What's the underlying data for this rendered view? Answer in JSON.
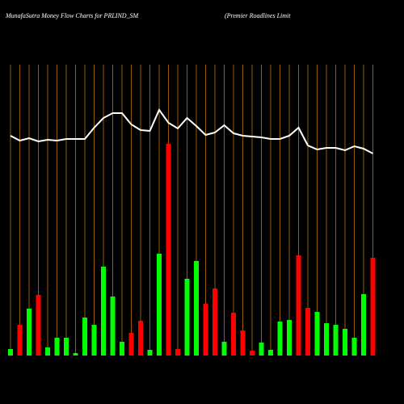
{
  "chart_data": {
    "type": "bar",
    "title": "MunafaSutra  Money Flow  Charts for PRLIND_SM",
    "subtitle": "(Premier Roadlines Limit",
    "categories": [
      null,
      null,
      null,
      null,
      null,
      null,
      null,
      null,
      null,
      null,
      null,
      null,
      null,
      null,
      null,
      null,
      null,
      null,
      null,
      null,
      null,
      null,
      null,
      null,
      null,
      null,
      null,
      null,
      null,
      null,
      null,
      null,
      null,
      null,
      null,
      null,
      null,
      null,
      null,
      null
    ],
    "values": [
      8,
      38,
      58,
      75,
      10,
      22,
      22,
      3,
      47,
      38,
      110,
      73,
      17,
      28,
      43,
      7,
      126,
      262,
      8,
      95,
      117,
      64,
      83,
      17,
      53,
      31,
      6,
      16,
      7,
      42,
      44,
      124,
      59,
      54,
      40,
      38,
      33,
      22,
      76,
      121
    ],
    "colors": [
      "#00ff00",
      "#ff0000",
      "#00ff00",
      "#ff0000",
      "#00ff00",
      "#00ff00",
      "#00ff00",
      "#00ff00",
      "#00ff00",
      "#00ff00",
      "#00ff00",
      "#00ff00",
      "#00ff00",
      "#ff0000",
      "#ff0000",
      "#00ff00",
      "#00ff00",
      "#ff0000",
      "#ff0000",
      "#00ff00",
      "#00ff00",
      "#ff0000",
      "#ff0000",
      "#00ff00",
      "#ff0000",
      "#ff0000",
      "#ff0000",
      "#00ff00",
      "#00ff00",
      "#00ff00",
      "#00ff00",
      "#ff0000",
      "#ff0000",
      "#00ff00",
      "#00ff00",
      "#00ff00",
      "#00ff00",
      "#00ff00",
      "#00ff00",
      "#ff0000"
    ],
    "line": {
      "color": "#ffffff",
      "values": [
        272,
        266,
        269,
        265,
        267,
        266,
        268,
        268,
        268,
        282,
        294,
        300,
        300,
        286,
        279,
        278,
        304,
        288,
        281,
        294,
        284,
        273,
        276,
        285,
        275,
        272,
        271,
        270,
        268,
        268,
        272,
        282,
        260,
        255,
        257,
        257,
        254,
        259,
        256,
        250
      ]
    },
    "grid_color": "#b8730a",
    "ylim": [
      0,
      320
    ]
  }
}
